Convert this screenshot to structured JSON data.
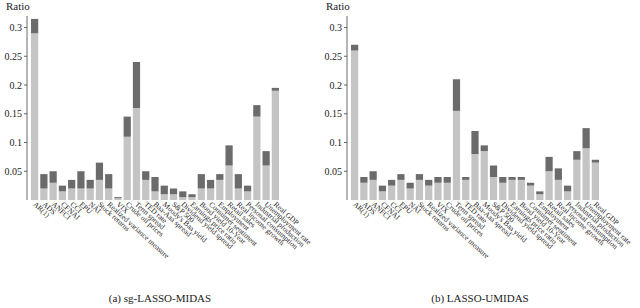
{
  "chart_data": [
    {
      "type": "bar",
      "stacked": true,
      "title": "(a) sg-LASSO-MIDAS",
      "y_label": "Ratio",
      "categories": [
        "AR(1)",
        "ADS",
        "ANFCI",
        "CFNAI",
        "CCI",
        "EPU",
        "NAI",
        "Stock returns",
        "Realized variance measure",
        "VIX",
        "Crude oil prices",
        "Term spread",
        "TED rate",
        "Baa-Aaa spread",
        "Moody's Baa yield",
        "S&P 500",
        "Dividend yield spread",
        "Earnings price ratio",
        "Bond yield 10-Year",
        "Consumer sentiment",
        "Employment",
        "Retail sales",
        "Real income growth",
        "Personal consumption",
        "Industrial production",
        "Unemployment rate",
        "Real GDP"
      ],
      "series": [
        {
          "color": "#c4c4c4",
          "values": [
            0.29,
            0.02,
            0.03,
            0.015,
            0.02,
            0.02,
            0.02,
            0.035,
            0.02,
            0.003,
            0.11,
            0.16,
            0.035,
            0.015,
            0.01,
            0.01,
            0.005,
            0.005,
            0.02,
            0.02,
            0.035,
            0.06,
            0.02,
            0.015,
            0.145,
            0.06,
            0.19
          ]
        },
        {
          "color": "#6b6b6b",
          "values": [
            0.025,
            0.025,
            0.02,
            0.01,
            0.015,
            0.03,
            0.015,
            0.03,
            0.025,
            0.002,
            0.035,
            0.08,
            0.015,
            0.025,
            0.015,
            0.01,
            0.01,
            0.005,
            0.025,
            0.015,
            0.01,
            0.035,
            0.025,
            0.01,
            0.02,
            0.025,
            0.005
          ]
        }
      ],
      "ylim": [
        0,
        0.32
      ],
      "yticks": [
        0.05,
        0.1,
        0.15,
        0.2,
        0.25,
        0.3
      ]
    },
    {
      "type": "bar",
      "stacked": true,
      "title": "(b) LASSO-UMIDAS",
      "y_label": "Ratio",
      "categories": [
        "AR(1)",
        "ADS",
        "ANFCI",
        "CFNAI",
        "CCI",
        "EPU",
        "NAI",
        "Stock returns",
        "Realized variance measure",
        "VIX",
        "Crude oil prices",
        "Term spread",
        "TED rate",
        "Baa-Aaa spread",
        "Moody's Baa yield",
        "S&P 500",
        "Dividend yield spread",
        "Earnings price ratio",
        "Bond yield 10-Year",
        "Consumer sentiment",
        "Employment",
        "Retail sales",
        "Real income growth",
        "Personal consumption",
        "Industrial production",
        "Unemployment rate",
        "Real GDP"
      ],
      "series": [
        {
          "color": "#c4c4c4",
          "values": [
            0.26,
            0.03,
            0.035,
            0.015,
            0.025,
            0.035,
            0.02,
            0.035,
            0.025,
            0.03,
            0.03,
            0.155,
            0.035,
            0.08,
            0.085,
            0.04,
            0.03,
            0.035,
            0.035,
            0.025,
            0.01,
            0.05,
            0.035,
            0.015,
            0.07,
            0.09,
            0.065
          ]
        },
        {
          "color": "#6b6b6b",
          "values": [
            0.01,
            0.01,
            0.015,
            0.01,
            0.01,
            0.01,
            0.01,
            0.01,
            0.01,
            0.01,
            0.01,
            0.055,
            0.005,
            0.04,
            0.01,
            0.02,
            0.01,
            0.005,
            0.005,
            0.005,
            0.005,
            0.025,
            0.02,
            0.01,
            0.015,
            0.035,
            0.005
          ]
        }
      ],
      "ylim": [
        0,
        0.32
      ],
      "yticks": [
        0.05,
        0.1,
        0.15,
        0.2,
        0.25,
        0.3
      ]
    }
  ]
}
